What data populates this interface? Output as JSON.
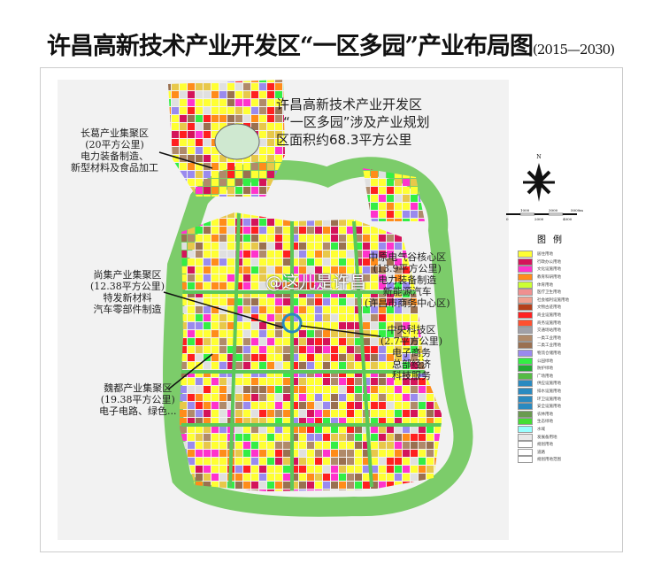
{
  "title": {
    "main": "许昌高新技术产业开发区“一区多园”产业布局图",
    "years": "(2015—2030)"
  },
  "intro": [
    "许昌高新技术产业开发区",
    "“一区多园”涉及产业规划",
    "区面积约68.3平方公里"
  ],
  "annotations": {
    "changge": [
      "长葛产业集聚区",
      "(20平方公里)",
      "电力装备制造、",
      "新型材料及食品加工"
    ],
    "shangji": [
      "尚集产业集聚区",
      "(12.38平方公里)",
      "特发新材料",
      "汽车零部件制造"
    ],
    "zhongyuan": [
      "中原电气谷核心区",
      "(13.9平方公里)",
      "电力装备制造",
      "新能源汽车",
      "(许昌市商务中心区)"
    ],
    "central": [
      "中央科技区",
      "(2.7平方公里)",
      "电子商务",
      "总部经济",
      "科技服务"
    ],
    "weidu": [
      "魏都产业集聚区",
      "(19.38平方公里)",
      "电子电路、绿色..."
    ]
  },
  "compass": {
    "north": "N"
  },
  "scale": {
    "labels": [
      "0",
      "1000",
      "2000",
      "3000",
      "4000",
      "5000m"
    ]
  },
  "legend": {
    "title": "图例",
    "items": [
      {
        "label": "居住用地",
        "color": "#ffff33"
      },
      {
        "label": "行政办公用地",
        "color": "#d4145a"
      },
      {
        "label": "文化设施用地",
        "color": "#ff33cc"
      },
      {
        "label": "教育科研用地",
        "color": "#ff8c1a"
      },
      {
        "label": "体育用地",
        "color": "#ccff33"
      },
      {
        "label": "医疗卫生用地",
        "color": "#f09090"
      },
      {
        "label": "社会福利设施用地",
        "color": "#f0a090"
      },
      {
        "label": "文物古迹用地",
        "color": "#b5401a"
      },
      {
        "label": "商业设施用地",
        "color": "#ff2020"
      },
      {
        "label": "商务设施用地",
        "color": "#ff5030"
      },
      {
        "label": "交通场站用地",
        "color": "#a0a0a8"
      },
      {
        "label": "一类工业用地",
        "color": "#b08a6a"
      },
      {
        "label": "二类工业用地",
        "color": "#9a7050"
      },
      {
        "label": "物流仓储用地",
        "color": "#9a8aee"
      },
      {
        "label": "公园绿地",
        "color": "#33ee44"
      },
      {
        "label": "防护绿地",
        "color": "#22aa33"
      },
      {
        "label": "广场用地",
        "color": "#55bb44"
      },
      {
        "label": "供应设施用地",
        "color": "#2a8ac0"
      },
      {
        "label": "排水设施用地",
        "color": "#2a8ac0"
      },
      {
        "label": "环卫设施用地",
        "color": "#2a8ac0"
      },
      {
        "label": "安全设施用地",
        "color": "#2a8ac0"
      },
      {
        "label": "农林用地",
        "color": "#6a9a50"
      },
      {
        "label": "生态绿地",
        "color": "#44dd33"
      },
      {
        "label": "水域",
        "color": "#99ffff"
      },
      {
        "label": "发展备用地",
        "color": "#e8e8e8"
      },
      {
        "label": "规划用地",
        "color": "#ffffff"
      },
      {
        "label": "道路",
        "color": "#ffffff"
      },
      {
        "label": "规划用地范围",
        "color": "#ffffff"
      }
    ]
  },
  "watermark": "@这儿是许昌"
}
